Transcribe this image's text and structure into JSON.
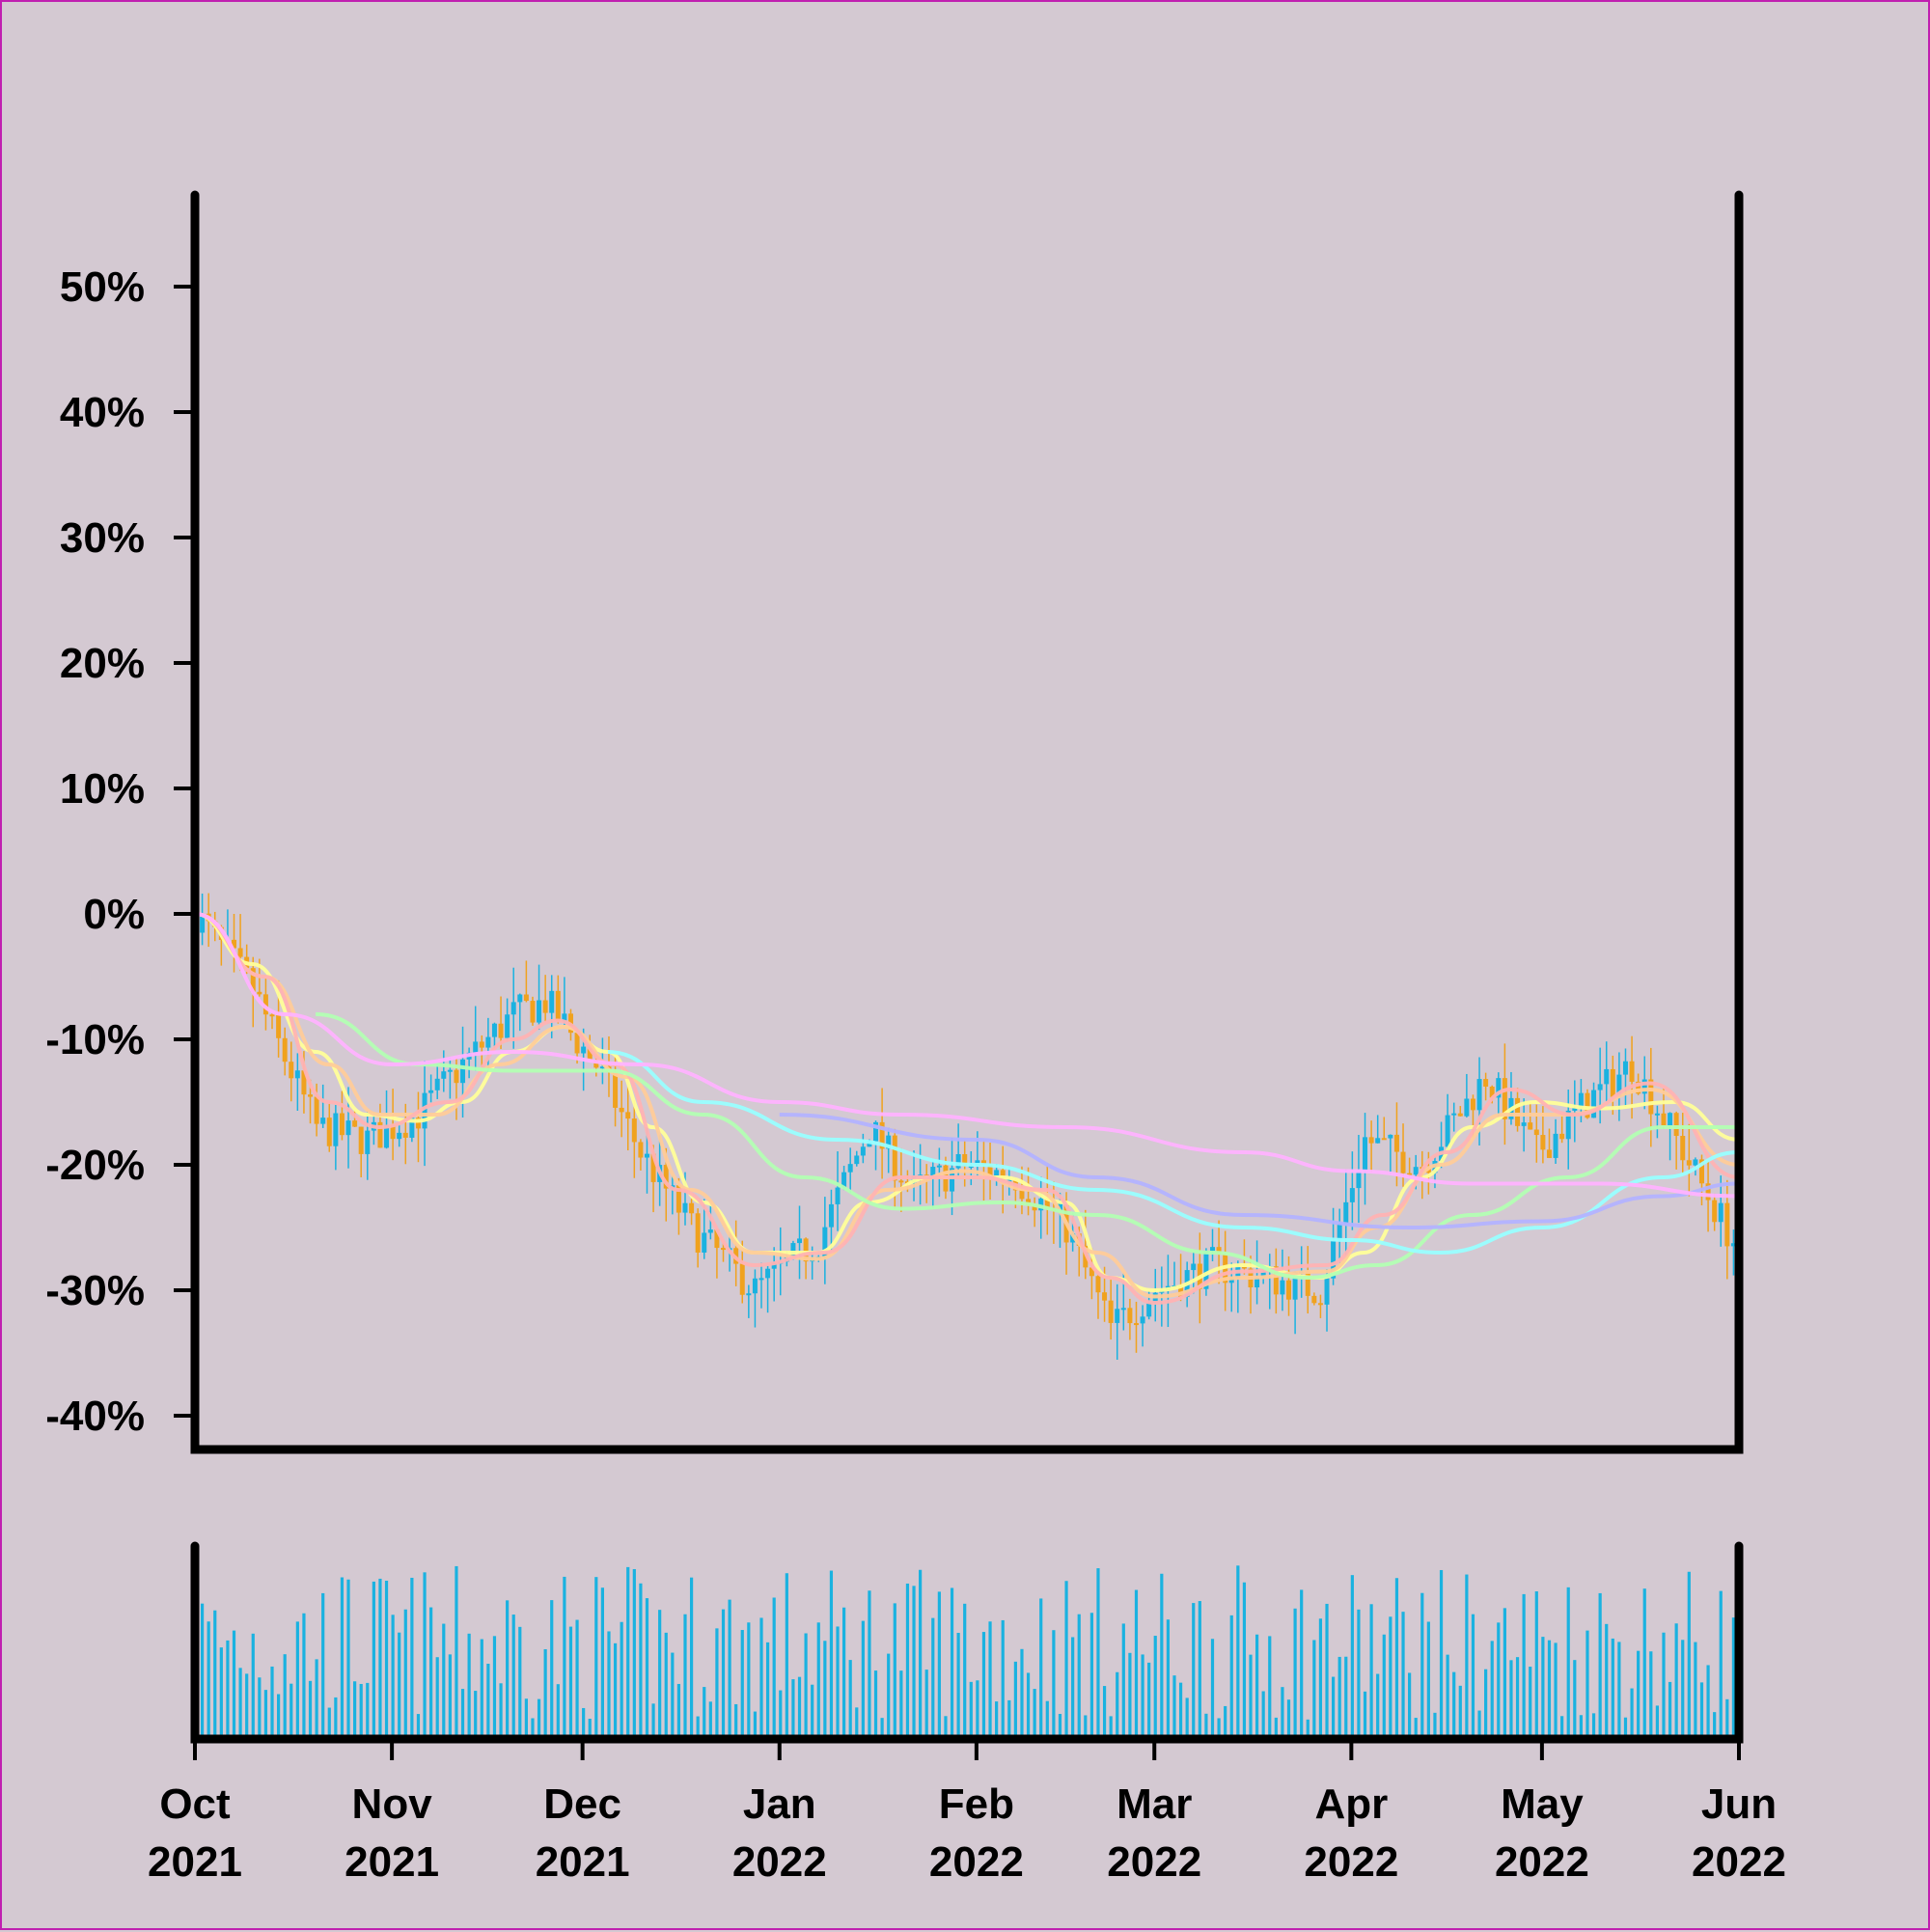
{
  "chart_data": {
    "type": "candlestick",
    "title": "",
    "xlabel": "",
    "ylabel": "",
    "x_range": [
      "2021-10-01",
      "2022-06-01"
    ],
    "ylim": [
      -40,
      57
    ],
    "y_ticks": [
      {
        "value": 50,
        "label": "50%"
      },
      {
        "value": 40,
        "label": "40%"
      },
      {
        "value": 30,
        "label": "30%"
      },
      {
        "value": 20,
        "label": "20%"
      },
      {
        "value": 10,
        "label": "10%"
      },
      {
        "value": 0,
        "label": "0%"
      },
      {
        "value": -10,
        "label": "-10%"
      },
      {
        "value": -20,
        "label": "-20%"
      },
      {
        "value": -30,
        "label": "-30%"
      },
      {
        "value": -40,
        "label": "-40%"
      }
    ],
    "x_ticks": [
      {
        "date": "2021-10-01",
        "month": "Oct",
        "year": "2021"
      },
      {
        "date": "2021-11-01",
        "month": "Nov",
        "year": "2021"
      },
      {
        "date": "2021-12-01",
        "month": "Dec",
        "year": "2021"
      },
      {
        "date": "2022-01-01",
        "month": "Jan",
        "year": "2022"
      },
      {
        "date": "2022-02-01",
        "month": "Feb",
        "year": "2022"
      },
      {
        "date": "2022-03-01",
        "month": "Mar",
        "year": "2022"
      },
      {
        "date": "2022-04-01",
        "month": "Apr",
        "year": "2022"
      },
      {
        "date": "2022-05-01",
        "month": "May",
        "year": "2022"
      },
      {
        "date": "2022-06-01",
        "month": "Jun",
        "year": "2022"
      }
    ],
    "grid": false,
    "legend": "none",
    "colors": {
      "background": "#d4c9d2",
      "up": "#1ab2e0",
      "down": "#f0a21e",
      "volume": "#1ab2e0",
      "axis": "#000000",
      "ma": [
        "#ffff99",
        "#ffcc99",
        "#ffb3b3",
        "#b3ffb3",
        "#99ffff",
        "#b3b3ff",
        "#ffb3ff"
      ]
    },
    "price_path": [
      {
        "date": "2021-10-01",
        "value": 0
      },
      {
        "date": "2021-10-10",
        "value": -6
      },
      {
        "date": "2021-10-20",
        "value": -17
      },
      {
        "date": "2021-10-28",
        "value": -18
      },
      {
        "date": "2021-11-05",
        "value": -16
      },
      {
        "date": "2021-11-12",
        "value": -12
      },
      {
        "date": "2021-11-20",
        "value": -8
      },
      {
        "date": "2021-11-25",
        "value": -7
      },
      {
        "date": "2021-12-03",
        "value": -12
      },
      {
        "date": "2021-12-10",
        "value": -19
      },
      {
        "date": "2021-12-18",
        "value": -25
      },
      {
        "date": "2021-12-28",
        "value": -30
      },
      {
        "date": "2022-01-07",
        "value": -26
      },
      {
        "date": "2022-01-15",
        "value": -17
      },
      {
        "date": "2022-01-22",
        "value": -22
      },
      {
        "date": "2022-01-30",
        "value": -20
      },
      {
        "date": "2022-02-07",
        "value": -21
      },
      {
        "date": "2022-02-15",
        "value": -25
      },
      {
        "date": "2022-02-22",
        "value": -33
      },
      {
        "date": "2022-03-01",
        "value": -30
      },
      {
        "date": "2022-03-10",
        "value": -28
      },
      {
        "date": "2022-03-18",
        "value": -29
      },
      {
        "date": "2022-03-27",
        "value": -30
      },
      {
        "date": "2022-04-03",
        "value": -18
      },
      {
        "date": "2022-04-12",
        "value": -20
      },
      {
        "date": "2022-04-22",
        "value": -13
      },
      {
        "date": "2022-04-30",
        "value": -19
      },
      {
        "date": "2022-05-08",
        "value": -15
      },
      {
        "date": "2022-05-15",
        "value": -12
      },
      {
        "date": "2022-05-22",
        "value": -18
      },
      {
        "date": "2022-06-01",
        "value": -27
      }
    ],
    "moving_averages": [
      {
        "points": [
          {
            "date": "2021-10-01",
            "value": 0
          },
          {
            "date": "2021-10-10",
            "value": -4
          },
          {
            "date": "2021-10-20",
            "value": -11
          },
          {
            "date": "2021-10-28",
            "value": -16
          },
          {
            "date": "2021-11-05",
            "value": -16.5
          },
          {
            "date": "2021-11-12",
            "value": -15
          },
          {
            "date": "2021-11-20",
            "value": -11
          },
          {
            "date": "2021-11-28",
            "value": -9
          },
          {
            "date": "2021-12-05",
            "value": -11
          },
          {
            "date": "2021-12-12",
            "value": -17
          },
          {
            "date": "2021-12-20",
            "value": -23
          },
          {
            "date": "2021-12-28",
            "value": -27
          },
          {
            "date": "2022-01-07",
            "value": -27
          },
          {
            "date": "2022-01-15",
            "value": -23
          },
          {
            "date": "2022-01-25",
            "value": -21
          },
          {
            "date": "2022-02-05",
            "value": -21
          },
          {
            "date": "2022-02-15",
            "value": -23
          },
          {
            "date": "2022-02-22",
            "value": -29
          },
          {
            "date": "2022-03-01",
            "value": -30
          },
          {
            "date": "2022-03-15",
            "value": -28
          },
          {
            "date": "2022-03-27",
            "value": -29
          },
          {
            "date": "2022-04-03",
            "value": -27
          },
          {
            "date": "2022-04-12",
            "value": -21
          },
          {
            "date": "2022-04-20",
            "value": -17
          },
          {
            "date": "2022-04-30",
            "value": -15
          },
          {
            "date": "2022-05-10",
            "value": -15.5
          },
          {
            "date": "2022-05-22",
            "value": -15
          },
          {
            "date": "2022-06-01",
            "value": -18
          }
        ]
      },
      {
        "points": [
          {
            "date": "2021-10-01",
            "value": 0
          },
          {
            "date": "2021-10-12",
            "value": -5
          },
          {
            "date": "2021-10-22",
            "value": -12
          },
          {
            "date": "2021-10-30",
            "value": -16
          },
          {
            "date": "2021-11-08",
            "value": -16
          },
          {
            "date": "2021-11-18",
            "value": -12
          },
          {
            "date": "2021-11-28",
            "value": -9
          },
          {
            "date": "2021-12-08",
            "value": -13
          },
          {
            "date": "2021-12-18",
            "value": -22
          },
          {
            "date": "2021-12-28",
            "value": -27
          },
          {
            "date": "2022-01-07",
            "value": -27.5
          },
          {
            "date": "2022-01-18",
            "value": -22
          },
          {
            "date": "2022-01-30",
            "value": -20.5
          },
          {
            "date": "2022-02-10",
            "value": -22
          },
          {
            "date": "2022-02-20",
            "value": -27
          },
          {
            "date": "2022-03-01",
            "value": -30.5
          },
          {
            "date": "2022-03-15",
            "value": -29
          },
          {
            "date": "2022-03-28",
            "value": -28.5
          },
          {
            "date": "2022-04-05",
            "value": -25
          },
          {
            "date": "2022-04-15",
            "value": -20
          },
          {
            "date": "2022-04-25",
            "value": -16
          },
          {
            "date": "2022-05-05",
            "value": -16
          },
          {
            "date": "2022-05-18",
            "value": -14
          },
          {
            "date": "2022-06-01",
            "value": -20
          }
        ]
      },
      {
        "points": [
          {
            "date": "2021-10-01",
            "value": 0
          },
          {
            "date": "2021-10-12",
            "value": -5
          },
          {
            "date": "2021-10-22",
            "value": -15
          },
          {
            "date": "2021-10-30",
            "value": -17
          },
          {
            "date": "2021-11-10",
            "value": -15
          },
          {
            "date": "2021-11-20",
            "value": -10
          },
          {
            "date": "2021-11-27",
            "value": -8.5
          },
          {
            "date": "2021-12-06",
            "value": -12
          },
          {
            "date": "2021-12-16",
            "value": -22
          },
          {
            "date": "2021-12-28",
            "value": -28
          },
          {
            "date": "2022-01-08",
            "value": -27
          },
          {
            "date": "2022-01-20",
            "value": -21
          },
          {
            "date": "2022-02-01",
            "value": -21
          },
          {
            "date": "2022-02-12",
            "value": -22
          },
          {
            "date": "2022-02-22",
            "value": -29
          },
          {
            "date": "2022-03-01",
            "value": -31
          },
          {
            "date": "2022-03-15",
            "value": -28.5
          },
          {
            "date": "2022-03-28",
            "value": -28
          },
          {
            "date": "2022-04-06",
            "value": -24
          },
          {
            "date": "2022-04-16",
            "value": -19
          },
          {
            "date": "2022-04-26",
            "value": -14
          },
          {
            "date": "2022-05-06",
            "value": -16
          },
          {
            "date": "2022-05-18",
            "value": -13.5
          },
          {
            "date": "2022-06-01",
            "value": -21
          }
        ]
      },
      {
        "points": [
          {
            "date": "2021-10-20",
            "value": -8
          },
          {
            "date": "2021-11-05",
            "value": -12
          },
          {
            "date": "2021-11-20",
            "value": -12.5
          },
          {
            "date": "2021-12-05",
            "value": -12.5
          },
          {
            "date": "2021-12-20",
            "value": -16
          },
          {
            "date": "2022-01-05",
            "value": -21
          },
          {
            "date": "2022-01-20",
            "value": -23.5
          },
          {
            "date": "2022-02-05",
            "value": -23
          },
          {
            "date": "2022-02-20",
            "value": -24
          },
          {
            "date": "2022-03-10",
            "value": -27
          },
          {
            "date": "2022-03-25",
            "value": -29
          },
          {
            "date": "2022-04-05",
            "value": -28
          },
          {
            "date": "2022-04-20",
            "value": -24
          },
          {
            "date": "2022-05-05",
            "value": -21
          },
          {
            "date": "2022-05-20",
            "value": -17
          },
          {
            "date": "2022-06-01",
            "value": -17
          }
        ]
      },
      {
        "points": [
          {
            "date": "2021-12-05",
            "value": -11
          },
          {
            "date": "2021-12-20",
            "value": -15
          },
          {
            "date": "2022-01-10",
            "value": -18
          },
          {
            "date": "2022-02-01",
            "value": -20
          },
          {
            "date": "2022-02-20",
            "value": -22
          },
          {
            "date": "2022-03-15",
            "value": -25
          },
          {
            "date": "2022-04-01",
            "value": -26
          },
          {
            "date": "2022-04-15",
            "value": -27
          },
          {
            "date": "2022-05-01",
            "value": -25
          },
          {
            "date": "2022-05-20",
            "value": -21
          },
          {
            "date": "2022-06-01",
            "value": -19
          }
        ]
      },
      {
        "points": [
          {
            "date": "2022-01-01",
            "value": -16
          },
          {
            "date": "2022-02-01",
            "value": -18
          },
          {
            "date": "2022-02-20",
            "value": -21
          },
          {
            "date": "2022-03-15",
            "value": -24
          },
          {
            "date": "2022-04-10",
            "value": -25
          },
          {
            "date": "2022-05-01",
            "value": -24.5
          },
          {
            "date": "2022-05-20",
            "value": -22.5
          },
          {
            "date": "2022-06-01",
            "value": -21.5
          }
        ]
      },
      {
        "points": [
          {
            "date": "2021-10-01",
            "value": 0
          },
          {
            "date": "2021-10-15",
            "value": -8
          },
          {
            "date": "2021-11-01",
            "value": -12
          },
          {
            "date": "2021-11-20",
            "value": -11
          },
          {
            "date": "2021-12-10",
            "value": -12
          },
          {
            "date": "2022-01-01",
            "value": -15
          },
          {
            "date": "2022-01-20",
            "value": -16
          },
          {
            "date": "2022-02-15",
            "value": -17
          },
          {
            "date": "2022-03-15",
            "value": -19
          },
          {
            "date": "2022-04-01",
            "value": -20.5
          },
          {
            "date": "2022-04-20",
            "value": -21.5
          },
          {
            "date": "2022-05-10",
            "value": -21.5
          },
          {
            "date": "2022-06-01",
            "value": -22.5
          }
        ]
      }
    ],
    "volume": {
      "units": "relative",
      "max": 1
    }
  }
}
